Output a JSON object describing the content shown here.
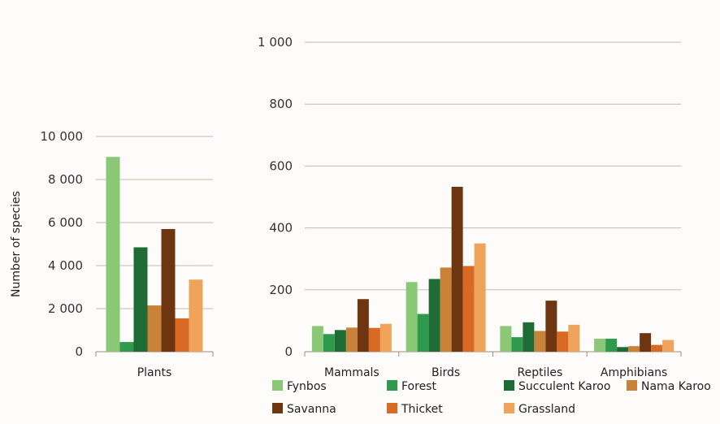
{
  "chart_data": [
    {
      "type": "bar",
      "ylabel": "Number of species",
      "categories": [
        "Plants"
      ],
      "ylim": [
        0,
        10000
      ],
      "yticks": [
        0,
        2000,
        4000,
        6000,
        8000,
        10000
      ],
      "ytick_labels": [
        "0",
        "2 000",
        "4 000",
        "6 000",
        "8 000",
        "10 000"
      ],
      "grid": true,
      "series": [
        {
          "name": "Fynbos",
          "values": [
            9050
          ]
        },
        {
          "name": "Forest",
          "values": [
            450
          ]
        },
        {
          "name": "Succulent Karoo",
          "values": [
            4850
          ]
        },
        {
          "name": "Nama Karoo",
          "values": [
            2150
          ]
        },
        {
          "name": "Savanna",
          "values": [
            5700
          ]
        },
        {
          "name": "Thicket",
          "values": [
            1550
          ]
        },
        {
          "name": "Grassland",
          "values": [
            3350
          ]
        }
      ]
    },
    {
      "type": "bar",
      "categories": [
        "Mammals",
        "Birds",
        "Reptiles",
        "Amphibians"
      ],
      "ylim": [
        0,
        1000
      ],
      "yticks": [
        0,
        200,
        400,
        600,
        800,
        1000
      ],
      "ytick_labels": [
        "0",
        "200",
        "400",
        "600",
        "800",
        "1 000"
      ],
      "grid": true,
      "legend_position": "bottom",
      "series": [
        {
          "name": "Fynbos",
          "values": [
            83,
            225,
            83,
            42
          ]
        },
        {
          "name": "Forest",
          "values": [
            57,
            122,
            47,
            42
          ]
        },
        {
          "name": "Succulent Karoo",
          "values": [
            70,
            235,
            95,
            15
          ]
        },
        {
          "name": "Nama Karoo",
          "values": [
            78,
            272,
            67,
            18
          ]
        },
        {
          "name": "Savanna",
          "values": [
            170,
            533,
            165,
            60
          ]
        },
        {
          "name": "Thicket",
          "values": [
            77,
            277,
            65,
            22
          ]
        },
        {
          "name": "Grassland",
          "values": [
            90,
            350,
            87,
            38
          ]
        }
      ]
    }
  ],
  "legend": [
    {
      "name": "Fynbos",
      "color": "#8bc875"
    },
    {
      "name": "Forest",
      "color": "#2f9a4d"
    },
    {
      "name": "Succulent Karoo",
      "color": "#1e6b35"
    },
    {
      "name": "Nama Karoo",
      "color": "#c8823a"
    },
    {
      "name": "Savanna",
      "color": "#6e3511"
    },
    {
      "name": "Thicket",
      "color": "#d96a24"
    },
    {
      "name": "Grassland",
      "color": "#f0a45b"
    }
  ]
}
